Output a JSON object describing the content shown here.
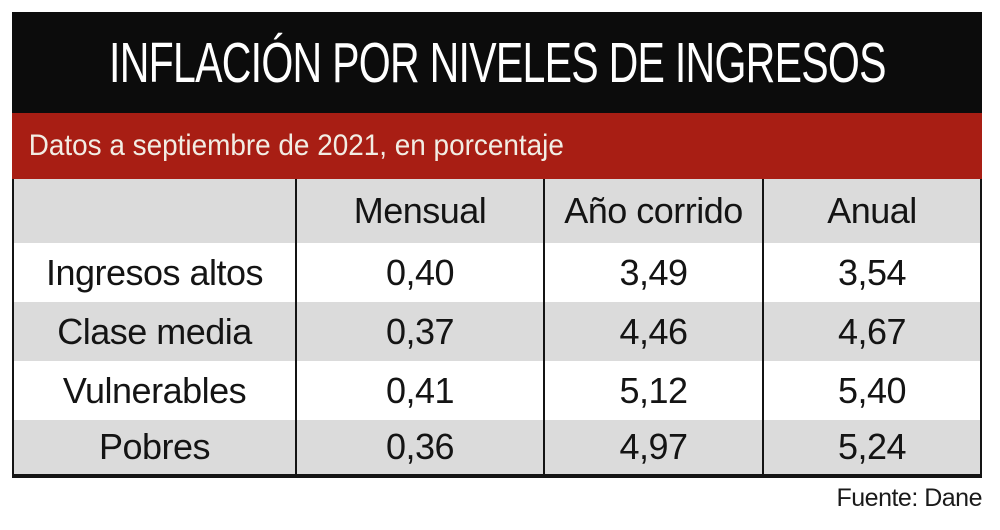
{
  "title": "INFLACIÓN POR NIVELES DE INGRESOS",
  "subtitle": "Datos a septiembre de 2021, en porcentaje",
  "source": "Fuente: Dane",
  "colors": {
    "black": "#0C0C0C",
    "red": "#A81E14",
    "gray": "#DBDBDB"
  },
  "table": {
    "columns": [
      "",
      "Mensual",
      "Año corrido",
      "Anual"
    ],
    "rows": [
      {
        "label": "Ingresos altos",
        "values": [
          "0,40",
          "3,49",
          "3,54"
        ]
      },
      {
        "label": "Clase media",
        "values": [
          "0,37",
          "4,46",
          "4,67"
        ]
      },
      {
        "label": "Vulnerables",
        "values": [
          "0,41",
          "5,12",
          "5,40"
        ]
      },
      {
        "label": "Pobres",
        "values": [
          "0,36",
          "4,97",
          "5,24"
        ]
      }
    ]
  },
  "chart_data": {
    "type": "table",
    "title": "INFLACIÓN POR NIVELES DE INGRESOS",
    "subtitle": "Datos a septiembre de 2021, en porcentaje",
    "unit": "percent",
    "columns": [
      "Mensual",
      "Año corrido",
      "Anual"
    ],
    "rows": [
      "Ingresos altos",
      "Clase media",
      "Vulnerables",
      "Pobres"
    ],
    "values": [
      [
        0.4,
        3.49,
        3.54
      ],
      [
        0.37,
        4.46,
        4.67
      ],
      [
        0.41,
        5.12,
        5.4
      ],
      [
        0.36,
        4.97,
        5.24
      ]
    ],
    "source": "Fuente: Dane"
  }
}
